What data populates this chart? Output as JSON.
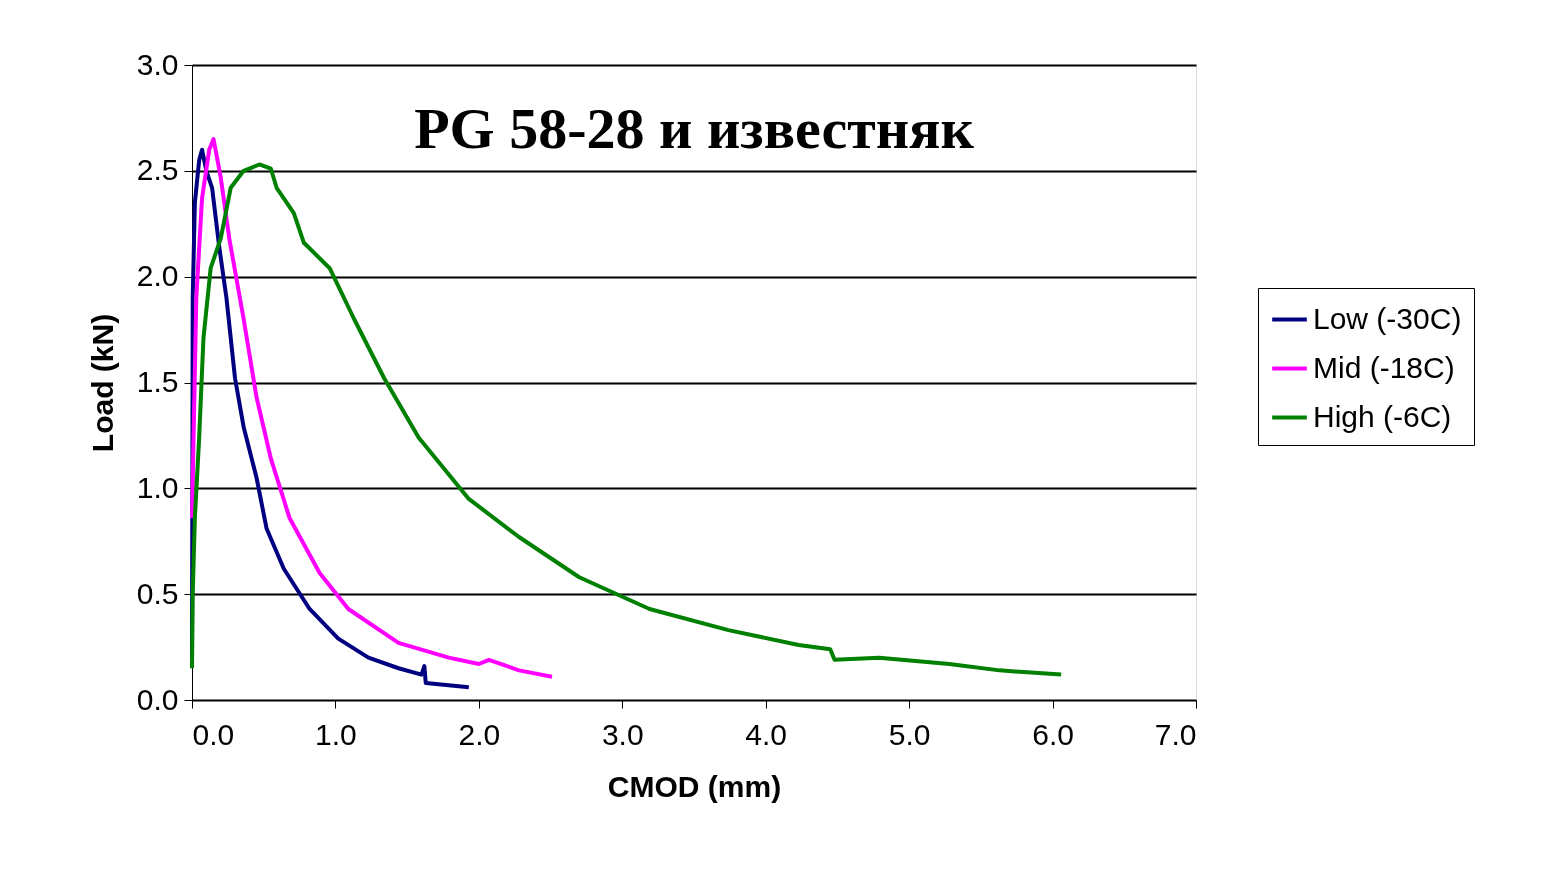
{
  "chart_data": {
    "type": "line",
    "title": "PG 58-28 и известняк",
    "xlabel": "CMOD (mm)",
    "ylabel": "Load (kN)",
    "xlim": [
      0,
      7
    ],
    "xticks": [
      {
        "value": 0,
        "label": "0.0"
      },
      {
        "value": 1,
        "label": "1.0"
      },
      {
        "value": 2,
        "label": "2.0"
      },
      {
        "value": 3,
        "label": "3.0"
      },
      {
        "value": 4,
        "label": "4.0"
      },
      {
        "value": 5,
        "label": "5.0"
      },
      {
        "value": 6,
        "label": "6.0"
      },
      {
        "value": 7,
        "label": "7.0"
      }
    ],
    "ylim": [
      0,
      3
    ],
    "yticks": [
      {
        "value": 0,
        "label": "0.0"
      },
      {
        "value": 0.5,
        "label": "0.5"
      },
      {
        "value": 1,
        "label": "1.0"
      },
      {
        "value": 1.5,
        "label": "1.5"
      },
      {
        "value": 2,
        "label": "2.0"
      },
      {
        "value": 2.5,
        "label": "2.5"
      },
      {
        "value": 3,
        "label": "3.0"
      }
    ],
    "grid": "y",
    "legend": "right",
    "marker": "none",
    "line_style": "solid",
    "series": [
      {
        "name": "Low (-30C)",
        "color": "#000080",
        "x": [
          0,
          0.005,
          0.02,
          0.05,
          0.07,
          0.1,
          0.14,
          0.19,
          0.24,
          0.3,
          0.36,
          0.45,
          0.52,
          0.64,
          0.82,
          1.02,
          1.23,
          1.44,
          1.6,
          1.62,
          1.63,
          1.93
        ],
        "values": [
          0.2,
          1.9,
          2.35,
          2.55,
          2.6,
          2.5,
          2.42,
          2.14,
          1.9,
          1.52,
          1.29,
          1.05,
          0.81,
          0.62,
          0.43,
          0.29,
          0.2,
          0.15,
          0.12,
          0.16,
          0.08,
          0.06
        ]
      },
      {
        "name": "Mid (-18C)",
        "color": "#ff00ff",
        "x": [
          0,
          0.03,
          0.07,
          0.12,
          0.15,
          0.2,
          0.26,
          0.36,
          0.45,
          0.55,
          0.68,
          0.89,
          1.09,
          1.44,
          1.79,
          2.0,
          2.07,
          2.28,
          2.51
        ],
        "values": [
          0.86,
          1.9,
          2.37,
          2.6,
          2.65,
          2.47,
          2.18,
          1.8,
          1.43,
          1.14,
          0.86,
          0.6,
          0.43,
          0.27,
          0.2,
          0.17,
          0.19,
          0.14,
          0.11
        ]
      },
      {
        "name": "High (-6C)",
        "color": "#008000",
        "x": [
          0,
          0.005,
          0.02,
          0.05,
          0.08,
          0.13,
          0.2,
          0.27,
          0.36,
          0.47,
          0.55,
          0.59,
          0.71,
          0.78,
          0.96,
          1.13,
          1.34,
          1.58,
          1.93,
          2.28,
          2.7,
          3.19,
          3.74,
          4.23,
          4.45,
          4.48,
          4.79,
          5.28,
          5.63,
          6.06
        ],
        "values": [
          0.15,
          0.5,
          0.86,
          1.24,
          1.71,
          2.04,
          2.18,
          2.42,
          2.5,
          2.53,
          2.51,
          2.42,
          2.3,
          2.16,
          2.04,
          1.8,
          1.52,
          1.24,
          0.95,
          0.77,
          0.58,
          0.43,
          0.33,
          0.26,
          0.24,
          0.19,
          0.2,
          0.17,
          0.14,
          0.12
        ]
      }
    ]
  }
}
